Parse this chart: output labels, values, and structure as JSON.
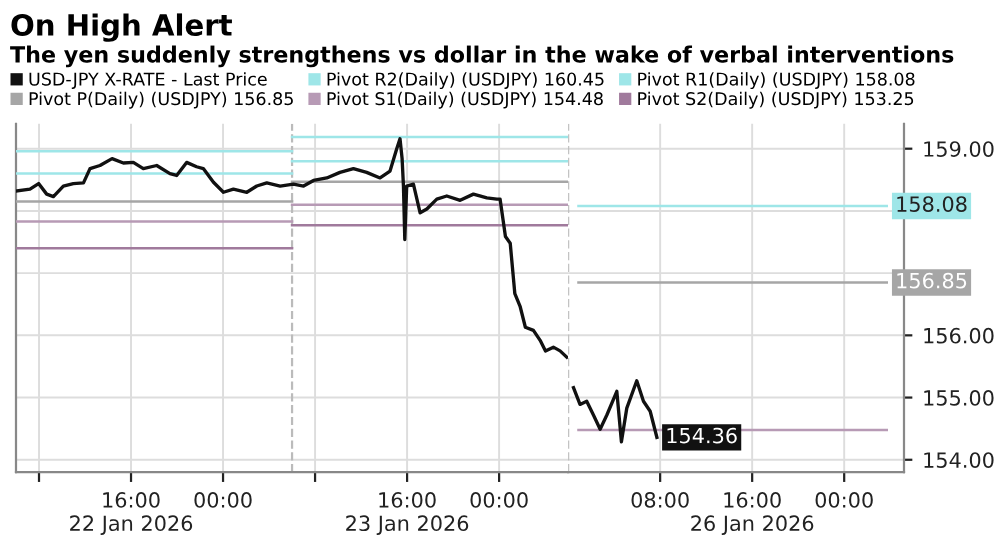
{
  "chart_data": [
    {
      "type": "line",
      "title": "On High Alert",
      "subtitle": "The yen suddenly strengthens vs dollar in the wake of verbal interventions",
      "series": [
        {
          "name": "USD-JPY X-RATE - Last Price",
          "color": "#111111",
          "x": [
            "2026-01-22T06:04",
            "2026-01-22T07:13",
            "2026-01-22T07:58",
            "2026-01-22T08:40",
            "2026-01-22T09:15",
            "2026-01-22T10:07",
            "2026-01-22T10:59",
            "2026-01-22T11:52",
            "2026-01-22T12:26",
            "2026-01-22T13:18",
            "2026-01-22T14:21",
            "2026-01-22T15:20",
            "2026-01-22T16:12",
            "2026-01-22T17:04",
            "2026-01-22T18:14",
            "2026-01-22T19:23",
            "2026-01-22T19:58",
            "2026-01-22T20:50",
            "2026-01-22T21:42",
            "2026-01-22T22:17",
            "2026-01-22T23:10",
            "2026-01-23T00:02",
            "2026-01-23T00:54",
            "2026-01-23T02:04",
            "2026-01-23T02:56",
            "2026-01-23T03:48",
            "2026-01-23T04:58",
            "2026-01-23T06:07",
            "2026-01-23T07:00",
            "2026-01-23T07:52",
            "2026-01-23T09:01",
            "2026-01-23T10:10",
            "2026-01-23T11:20",
            "2026-01-23T12:29",
            "2026-01-23T13:39",
            "2026-01-23T14:31",
            "2026-01-23T15:06",
            "2026-01-23T15:23",
            "2026-01-23T15:34",
            "2026-01-23T15:41",
            "2026-01-23T15:48",
            "2026-01-23T15:58",
            "2026-01-23T16:33",
            "2026-01-23T17:08",
            "2026-01-23T17:43",
            "2026-01-23T18:35",
            "2026-01-23T19:27",
            "2026-01-23T20:37",
            "2026-01-23T21:46",
            "2026-01-23T22:56",
            "2026-01-23T23:48",
            "2026-01-24T00:05",
            "2026-01-24T00:33",
            "2026-01-24T00:58",
            "2026-01-24T01:22",
            "2026-01-24T01:50",
            "2026-01-24T02:17",
            "2026-01-24T02:59",
            "2026-01-24T03:34",
            "2026-01-24T04:02",
            "2026-01-24T04:43",
            "2026-01-24T05:18",
            "2026-01-24T05:53"
          ],
          "values": [
            158.32,
            158.35,
            158.44,
            158.27,
            158.23,
            158.4,
            158.44,
            158.45,
            158.68,
            158.73,
            158.84,
            158.77,
            158.78,
            158.68,
            158.73,
            158.6,
            158.57,
            158.78,
            158.71,
            158.68,
            158.46,
            158.3,
            158.35,
            158.3,
            158.4,
            158.45,
            158.4,
            158.43,
            158.4,
            158.49,
            158.53,
            158.62,
            158.68,
            158.62,
            158.53,
            158.64,
            159.0,
            159.16,
            158.84,
            158.4,
            157.54,
            158.4,
            158.43,
            157.97,
            158.03,
            158.19,
            158.24,
            158.17,
            158.27,
            158.21,
            158.19,
            158.19,
            157.59,
            157.48,
            156.67,
            156.46,
            156.13,
            156.08,
            155.92,
            155.75,
            155.81,
            155.75,
            155.65
          ]
        },
        {
          "name": "Pivot P(Daily) (USDJPY) 156.85",
          "color": "#a6a6a6",
          "x": [
            "2026-01-22T06:00",
            "2026-01-23T06:00"
          ],
          "values": [
            158.15,
            158.15
          ]
        },
        {
          "name": "Pivot R2(Daily) (USDJPY) 160.45",
          "color": "#9ee6e8",
          "x": [
            "2026-01-22T06:00",
            "2026-01-23T06:00"
          ],
          "values": [
            158.96,
            158.96
          ]
        },
        {
          "name": "Pivot S1(Daily) (USDJPY) 154.48",
          "color": "#b79ab5",
          "x": [
            "2026-01-22T06:00",
            "2026-01-23T06:00"
          ],
          "values": [
            157.83,
            157.83
          ]
        },
        {
          "name": "Pivot R1(Daily) (USDJPY) 158.08",
          "color": "#9ee6e8",
          "x": [
            "2026-01-22T06:00",
            "2026-01-23T06:00"
          ],
          "values": [
            158.6,
            158.6
          ]
        },
        {
          "name": "Pivot S2(Daily) (USDJPY) 153.25",
          "color": "#a07a9c",
          "x": [
            "2026-01-22T06:00",
            "2026-01-23T06:00"
          ],
          "values": [
            157.4,
            157.4
          ]
        },
        {
          "color": "#a6a6a6",
          "x": [
            "2026-01-23T06:00",
            "2026-01-24T06:00"
          ],
          "values": [
            158.47,
            158.47
          ]
        },
        {
          "color": "#9ee6e8",
          "x": [
            "2026-01-23T06:00",
            "2026-01-24T06:00"
          ],
          "values": [
            159.19,
            159.19
          ]
        },
        {
          "color": "#b79ab5",
          "x": [
            "2026-01-23T06:00",
            "2026-01-24T06:00"
          ],
          "values": [
            158.1,
            158.1
          ]
        },
        {
          "color": "#9ee6e8",
          "x": [
            "2026-01-23T06:00",
            "2026-01-24T06:00"
          ],
          "values": [
            158.8,
            158.8
          ]
        },
        {
          "color": "#a07a9c",
          "x": [
            "2026-01-23T06:00",
            "2026-01-24T06:00"
          ],
          "values": [
            157.77,
            157.77
          ]
        }
      ],
      "xlim": [
        "2026-01-22T06:00",
        "2026-01-24T06:00"
      ],
      "xticks": [
        {
          "value": "2026-01-22T08:00",
          "label": null
        },
        {
          "value": "2026-01-22T16:00",
          "label": "16:00\n22 Jan 2026"
        },
        {
          "value": "2026-01-23T00:00",
          "label": "00:00"
        },
        {
          "value": "2026-01-23T08:00",
          "label": null
        },
        {
          "value": "2026-01-23T16:00",
          "label": "16:00\n23 Jan 2026"
        },
        {
          "value": "2026-01-24T00:00",
          "label": "00:00"
        }
      ],
      "ylim": [
        153.8,
        159.4
      ],
      "yticks": [
        154,
        155,
        156,
        157,
        158,
        159
      ],
      "tick_labels": "x",
      "ref_lines": [
        {
          "axis": "x",
          "value": "2026-01-23T06:00",
          "color": "#bbbbbb",
          "line_style": "dashed"
        }
      ],
      "grid": true,
      "legend": "top",
      "marker": "none",
      "line_style": "solid"
    },
    {
      "type": "line",
      "series": [
        {
          "color": "#111111",
          "x": [
            "2026-01-26T00:28",
            "2026-01-26T01:02",
            "2026-01-26T01:37",
            "2026-01-26T02:12",
            "2026-01-26T02:47",
            "2026-01-26T03:22",
            "2026-01-26T04:14",
            "2026-01-26T04:38",
            "2026-01-26T05:06",
            "2026-01-26T05:58",
            "2026-01-26T06:33",
            "2026-01-26T07:08",
            "2026-01-26T07:43"
          ],
          "values": [
            155.16,
            154.89,
            154.94,
            154.72,
            154.49,
            154.72,
            155.1,
            154.29,
            154.83,
            155.27,
            154.94,
            154.78,
            154.36
          ],
          "value_labels": [
            null,
            null,
            null,
            null,
            null,
            null,
            null,
            null,
            null,
            null,
            null,
            null,
            "154.36"
          ]
        },
        {
          "color": "#a6a6a6",
          "x": [
            "2026-01-26T00:54",
            "2026-01-27T03:42"
          ],
          "values": [
            156.85,
            156.85
          ],
          "value_labels": [
            null,
            "156.85"
          ]
        },
        {
          "color": "#b79ab5",
          "x": [
            "2026-01-26T00:54",
            "2026-01-27T03:42"
          ],
          "values": [
            154.48,
            154.48
          ]
        },
        {
          "color": "#9ee6e8",
          "x": [
            "2026-01-26T00:54",
            "2026-01-27T03:42"
          ],
          "values": [
            158.08,
            158.08
          ],
          "value_labels": [
            null,
            "158.08"
          ]
        }
      ],
      "xlim": [
        "2026-01-26T00:00",
        "2026-01-27T05:12"
      ],
      "xticks": [
        {
          "value": "2026-01-26T08:00",
          "label": "08:00"
        },
        {
          "value": "2026-01-26T16:00",
          "label": "16:00\n26 Jan 2026"
        },
        {
          "value": "2026-01-27T00:00",
          "label": "00:00"
        }
      ],
      "ylim": [
        153.8,
        159.4
      ],
      "yticks": [
        {
          "value": 154,
          "label": "154.00"
        },
        {
          "value": 155,
          "label": "155.00"
        },
        {
          "value": 156,
          "label": "156.00"
        },
        {
          "value": 157,
          "label": null
        },
        {
          "value": 158,
          "label": null
        },
        {
          "value": 159,
          "label": "159.00"
        }
      ],
      "ref_lines": [
        {
          "axis": "x",
          "value": "2026-01-26T00:00",
          "color": "#bbbbbb",
          "line_style": "dashed"
        }
      ],
      "grid": true,
      "marker": "none",
      "line_style": "solid"
    }
  ]
}
